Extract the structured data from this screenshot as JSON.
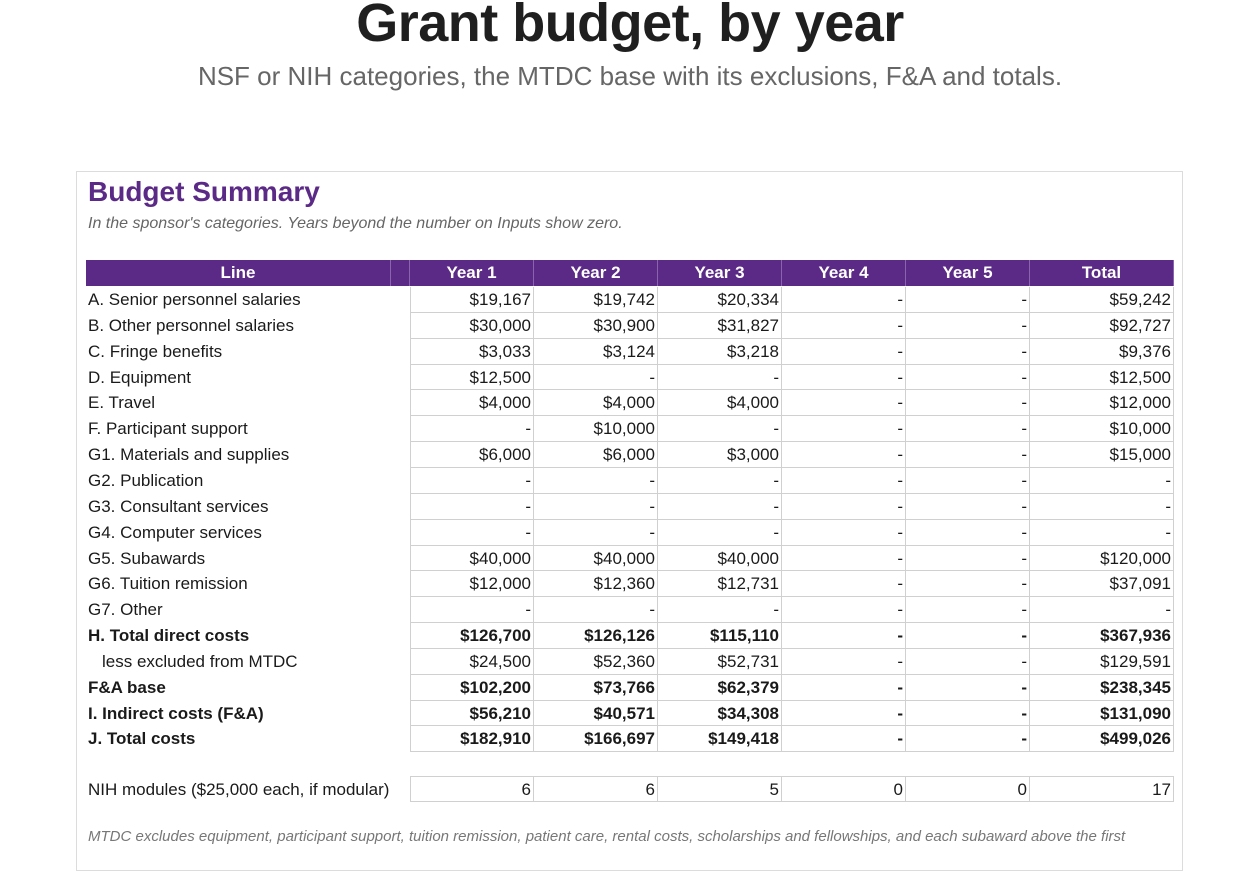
{
  "header": {
    "title": "Grant budget, by year",
    "subtitle": "NSF or NIH categories, the MTDC base with its exclusions, F&A and totals."
  },
  "summary": {
    "title": "Budget Summary",
    "note": "In the sponsor's categories. Years beyond the number on Inputs show zero.",
    "columns": [
      "Line",
      "Year 1",
      "Year 2",
      "Year 3",
      "Year 4",
      "Year 5",
      "Total"
    ],
    "rows": [
      {
        "label": "A. Senior personnel salaries",
        "bold": false,
        "indent": false,
        "values": [
          "$19,167",
          "$19,742",
          "$20,334",
          "-",
          "-",
          "$59,242"
        ]
      },
      {
        "label": "B. Other personnel salaries",
        "bold": false,
        "indent": false,
        "values": [
          "$30,000",
          "$30,900",
          "$31,827",
          "-",
          "-",
          "$92,727"
        ]
      },
      {
        "label": "C. Fringe benefits",
        "bold": false,
        "indent": false,
        "values": [
          "$3,033",
          "$3,124",
          "$3,218",
          "-",
          "-",
          "$9,376"
        ]
      },
      {
        "label": "D. Equipment",
        "bold": false,
        "indent": false,
        "values": [
          "$12,500",
          "-",
          "-",
          "-",
          "-",
          "$12,500"
        ]
      },
      {
        "label": "E. Travel",
        "bold": false,
        "indent": false,
        "values": [
          "$4,000",
          "$4,000",
          "$4,000",
          "-",
          "-",
          "$12,000"
        ]
      },
      {
        "label": "F. Participant support",
        "bold": false,
        "indent": false,
        "values": [
          "-",
          "$10,000",
          "-",
          "-",
          "-",
          "$10,000"
        ]
      },
      {
        "label": "G1. Materials and supplies",
        "bold": false,
        "indent": false,
        "values": [
          "$6,000",
          "$6,000",
          "$3,000",
          "-",
          "-",
          "$15,000"
        ]
      },
      {
        "label": "G2. Publication",
        "bold": false,
        "indent": false,
        "values": [
          "-",
          "-",
          "-",
          "-",
          "-",
          "-"
        ]
      },
      {
        "label": "G3. Consultant services",
        "bold": false,
        "indent": false,
        "values": [
          "-",
          "-",
          "-",
          "-",
          "-",
          "-"
        ]
      },
      {
        "label": "G4. Computer services",
        "bold": false,
        "indent": false,
        "values": [
          "-",
          "-",
          "-",
          "-",
          "-",
          "-"
        ]
      },
      {
        "label": "G5. Subawards",
        "bold": false,
        "indent": false,
        "values": [
          "$40,000",
          "$40,000",
          "$40,000",
          "-",
          "-",
          "$120,000"
        ]
      },
      {
        "label": "G6. Tuition remission",
        "bold": false,
        "indent": false,
        "values": [
          "$12,000",
          "$12,360",
          "$12,731",
          "-",
          "-",
          "$37,091"
        ]
      },
      {
        "label": "G7. Other",
        "bold": false,
        "indent": false,
        "values": [
          "-",
          "-",
          "-",
          "-",
          "-",
          "-"
        ]
      },
      {
        "label": "H. Total direct costs",
        "bold": true,
        "indent": false,
        "values": [
          "$126,700",
          "$126,126",
          "$115,110",
          "-",
          "-",
          "$367,936"
        ]
      },
      {
        "label": "less excluded from MTDC",
        "bold": false,
        "indent": true,
        "values": [
          "$24,500",
          "$52,360",
          "$52,731",
          "-",
          "-",
          "$129,591"
        ]
      },
      {
        "label": "F&A base",
        "bold": true,
        "indent": false,
        "values": [
          "$102,200",
          "$73,766",
          "$62,379",
          "-",
          "-",
          "$238,345"
        ]
      },
      {
        "label": "I. Indirect costs (F&A)",
        "bold": true,
        "indent": false,
        "values": [
          "$56,210",
          "$40,571",
          "$34,308",
          "-",
          "-",
          "$131,090"
        ]
      },
      {
        "label": "J. Total costs",
        "bold": true,
        "indent": false,
        "values": [
          "$182,910",
          "$166,697",
          "$149,418",
          "-",
          "-",
          "$499,026"
        ]
      }
    ],
    "modules": {
      "label": "NIH modules ($25,000 each, if modular)",
      "values": [
        "6",
        "6",
        "5",
        "0",
        "0",
        "17"
      ]
    },
    "footnote": "MTDC excludes equipment, participant support, tuition remission, patient care, rental costs, scholarships and fellowships, and each subaward above the first"
  }
}
